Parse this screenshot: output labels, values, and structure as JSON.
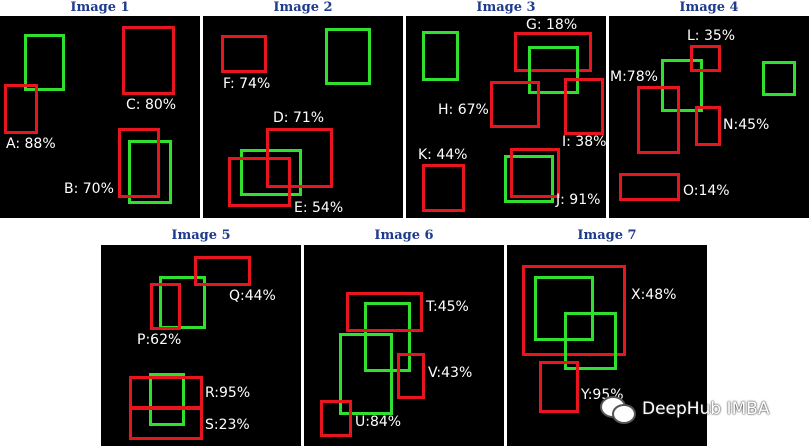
{
  "panels": [
    {
      "title": "Image 1",
      "labels": [
        "A: 88%",
        "B: 70%",
        "C: 80%"
      ]
    },
    {
      "title": "Image 2",
      "labels": [
        "D: 71%",
        "E: 54%",
        "F: 74%"
      ]
    },
    {
      "title": "Image 3",
      "labels": [
        "G: 18%",
        "H: 67%",
        "I: 38%",
        "J: 91%",
        "K: 44%"
      ]
    },
    {
      "title": "Image 4",
      "labels": [
        "L: 35%",
        "M:78%",
        "N:45%",
        "O:14%"
      ]
    },
    {
      "title": "Image 5",
      "labels": [
        "P:62%",
        "Q:44%",
        "R:95%",
        "S:23%"
      ]
    },
    {
      "title": "Image 6",
      "labels": [
        "T:45%",
        "U:84%",
        "V:43%"
      ]
    },
    {
      "title": "Image 7",
      "labels": [
        "X:48%",
        "Y:95%"
      ]
    }
  ],
  "box_colors": {
    "ground_truth": "#2fe02f",
    "prediction": "#e8141e"
  },
  "watermark": {
    "icon": "wechat-icon",
    "text": "DeepHub IMBA"
  }
}
